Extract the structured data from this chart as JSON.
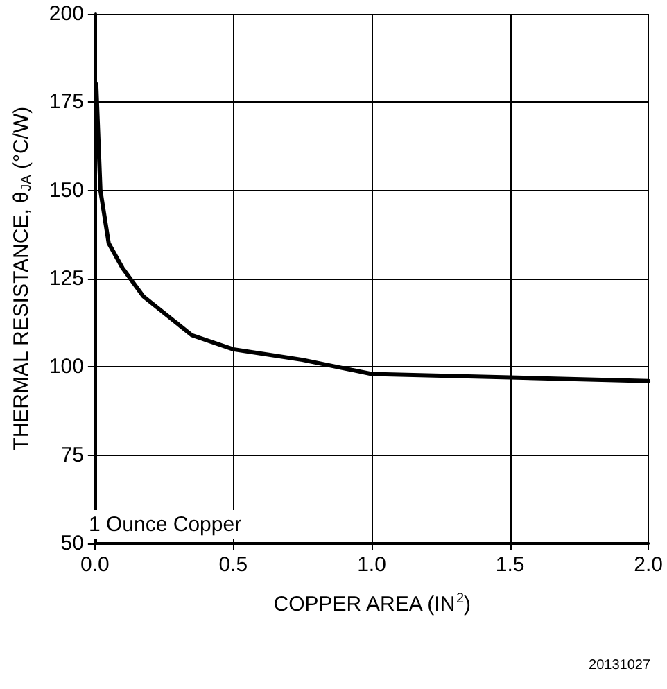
{
  "chart_data": {
    "type": "line",
    "xlabel": "COPPER AREA (IN$^{2}$)",
    "ylabel": "THERMAL RESISTANCE, θ$_{JA}$ (°C/W)",
    "x": [
      0.005,
      0.02,
      0.05,
      0.1,
      0.175,
      0.35,
      0.5,
      0.75,
      1.0,
      1.5,
      2.0
    ],
    "series": [
      {
        "color": "#000000",
        "values": [
          180,
          150,
          135,
          128,
          120,
          109,
          105,
          102,
          98,
          97,
          96
        ]
      }
    ],
    "xlim": [
      0,
      2
    ],
    "xticks": [
      {
        "value": 0,
        "label": "0.0"
      },
      {
        "value": 0.5,
        "label": "0.5"
      },
      {
        "value": 1,
        "label": "1.0"
      },
      {
        "value": 1.5,
        "label": "1.5"
      },
      {
        "value": 2,
        "label": "2.0"
      }
    ],
    "ylim": [
      50,
      200
    ],
    "yticks": [
      50,
      75,
      100,
      125,
      150,
      175,
      200
    ],
    "grid": true,
    "marker": "none",
    "line_style": "solid",
    "annotations": [
      "1 Ounce Copper",
      "20131027"
    ]
  }
}
